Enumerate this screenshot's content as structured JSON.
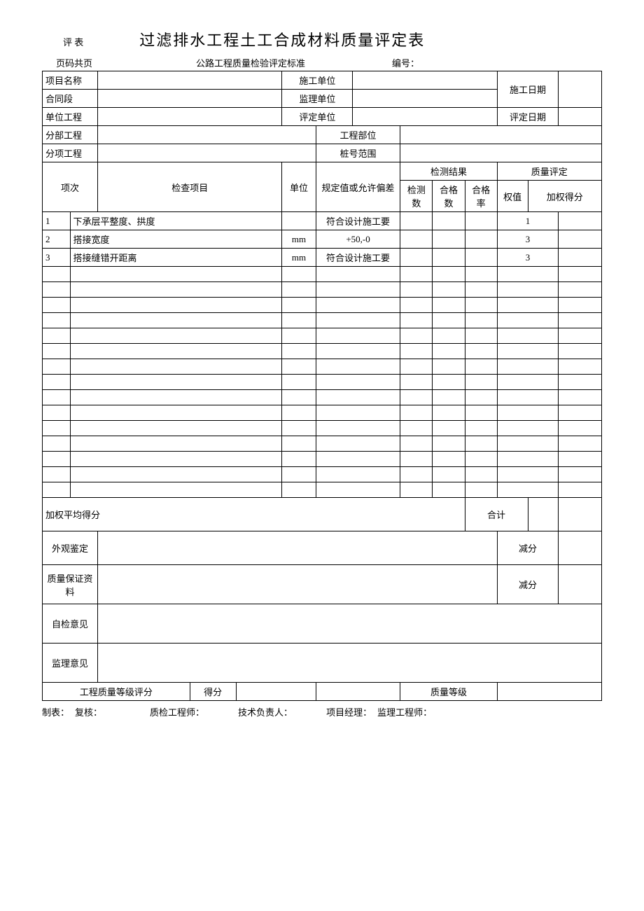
{
  "header": {
    "eval_label": "评 表",
    "title": "过滤排水工程土工合成材料质量评定表",
    "page_label": "页码共页",
    "standard_label": "公路工程质量检验评定标准",
    "number_label": "编号："
  },
  "info_labels": {
    "project_name": "项目名称",
    "construct_unit": "施工单位",
    "construct_date": "施工日期",
    "contract_section": "合同段",
    "supervise_unit": "监理单位",
    "unit_project": "单位工程",
    "eval_unit": "评定单位",
    "eval_date": "评定日期",
    "sub_project": "分部工程",
    "project_part": "工程部位",
    "item_project": "分项工程",
    "stake_range": "桩号范围"
  },
  "table_header": {
    "seq": "项次",
    "check_item": "检查项目",
    "unit": "单位",
    "spec": "规定值或允许偏差",
    "test_result": "检测结果",
    "test_count": "检测数",
    "pass_count": "合格数",
    "pass_rate": "合格率",
    "quality_eval": "质量评定",
    "weight": "权值",
    "weighted_score": "加权得分"
  },
  "rows": [
    {
      "seq": "1",
      "item": "下承层平整度、拱度",
      "unit": "",
      "spec": "符合设计施工要",
      "weight": "1"
    },
    {
      "seq": "2",
      "item": "搭接宽度",
      "unit": "mm",
      "spec": "+50,-0",
      "weight": "3"
    },
    {
      "seq": "3",
      "item": "搭接缝错开距离",
      "unit": "mm",
      "spec": "符合设计施工要",
      "weight": "3"
    }
  ],
  "bottom": {
    "weighted_avg": "加权平均得分",
    "total": "合计",
    "appearance": "外观鉴定",
    "deduct": "减分",
    "qa_material": "质量保证资料",
    "self_opinion": "自检意见",
    "supervise_opinion": "监理意见",
    "grade_score": "工程质量等级评分",
    "score": "得分",
    "quality_grade": "质量等级"
  },
  "footer": {
    "make": "制表：",
    "review": "复核：",
    "qc_engineer": "质检工程师：",
    "tech_lead": "技术负责人：",
    "pm": "项目经理：",
    "supervise_engineer": "监理工程师："
  }
}
